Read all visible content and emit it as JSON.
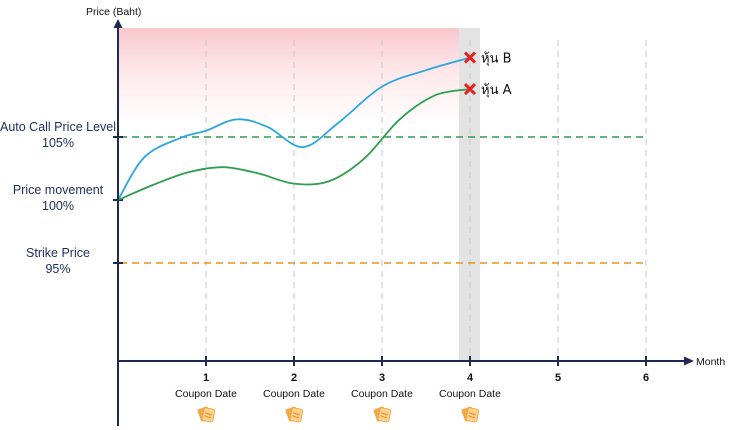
{
  "chart_data": {
    "type": "line",
    "ylabel": "Price (Baht)",
    "xlabel": "Month",
    "x_ticks": [
      "1",
      "2",
      "3",
      "4",
      "5",
      "6"
    ],
    "coupon_label": "Coupon Date",
    "coupon_months": [
      1,
      2,
      3,
      4
    ],
    "reference_levels": [
      {
        "name": "Auto Call Price Level",
        "pct_label": "105%",
        "value": 105,
        "color": "#2e9e4f"
      },
      {
        "name": "Price movement",
        "pct_label": "100%",
        "value": 100,
        "color": null
      },
      {
        "name": "Strike Price",
        "pct_label": "95%",
        "value": 95,
        "color": "#f0921e"
      }
    ],
    "ylim": [
      88.1,
      117.6
    ],
    "xlim": [
      0,
      6.5
    ],
    "highlight_month": 4,
    "series": [
      {
        "name": "หุ้น B",
        "color": "#2aa7e0",
        "end_marker": "x",
        "x": [
          0,
          0.3,
          0.7,
          1.0,
          1.35,
          1.7,
          2.1,
          2.5,
          3.0,
          3.5,
          4.0
        ],
        "y": [
          100,
          103.4,
          104.9,
          105.5,
          106.4,
          105.8,
          104.2,
          106.1,
          109.0,
          110.3,
          111.3
        ]
      },
      {
        "name": "หุ้น A",
        "color": "#2e9e4f",
        "end_marker": "x",
        "x": [
          0,
          0.4,
          0.8,
          1.2,
          1.6,
          2.0,
          2.4,
          2.8,
          3.2,
          3.6,
          4.0
        ],
        "y": [
          100,
          101.2,
          102.2,
          102.6,
          102.1,
          101.3,
          101.5,
          103.3,
          106.4,
          108.3,
          108.8
        ]
      }
    ]
  }
}
